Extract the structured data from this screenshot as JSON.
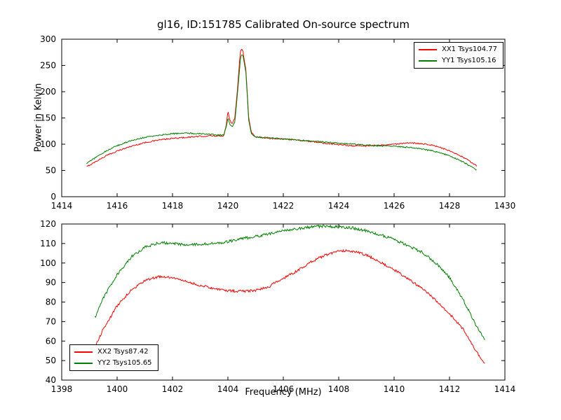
{
  "figure_title": "gl16, ID:151785 Calibrated On-source spectrum",
  "chart_data": [
    {
      "type": "line",
      "title": "gl16, ID:151785 Calibrated On-source spectrum",
      "xlabel": "",
      "ylabel": "Power in Kelvin",
      "xlim": [
        1414,
        1430
      ],
      "ylim": [
        0,
        300
      ],
      "xticks": [
        1414,
        1416,
        1418,
        1420,
        1422,
        1424,
        1426,
        1428,
        1430
      ],
      "yticks": [
        0,
        50,
        100,
        150,
        200,
        250,
        300
      ],
      "grid": false,
      "legend_position": "upper-right",
      "series": [
        {
          "name": "XX1 Tsys104.77",
          "color": "#ff0000",
          "noise": 1.2,
          "points": [
            [
              1414.9,
              57
            ],
            [
              1415.2,
              66
            ],
            [
              1415.6,
              78
            ],
            [
              1416.0,
              87
            ],
            [
              1416.5,
              96
            ],
            [
              1417.0,
              103
            ],
            [
              1417.5,
              108
            ],
            [
              1418.0,
              111
            ],
            [
              1418.5,
              113
            ],
            [
              1419.0,
              115
            ],
            [
              1419.5,
              116
            ],
            [
              1419.85,
              116
            ],
            [
              1419.95,
              140
            ],
            [
              1420.0,
              165
            ],
            [
              1420.05,
              148
            ],
            [
              1420.15,
              138
            ],
            [
              1420.25,
              150
            ],
            [
              1420.35,
              210
            ],
            [
              1420.45,
              278
            ],
            [
              1420.5,
              282
            ],
            [
              1420.55,
              275
            ],
            [
              1420.65,
              240
            ],
            [
              1420.75,
              150
            ],
            [
              1420.85,
              122
            ],
            [
              1421.0,
              114
            ],
            [
              1421.5,
              111
            ],
            [
              1422.0,
              110
            ],
            [
              1422.5,
              108
            ],
            [
              1423.0,
              105
            ],
            [
              1423.5,
              102
            ],
            [
              1424.0,
              99
            ],
            [
              1424.5,
              97
            ],
            [
              1425.0,
              97
            ],
            [
              1425.5,
              98
            ],
            [
              1426.0,
              100
            ],
            [
              1426.5,
              102
            ],
            [
              1426.8,
              102
            ],
            [
              1427.2,
              100
            ],
            [
              1427.6,
              95
            ],
            [
              1428.0,
              87
            ],
            [
              1428.5,
              75
            ],
            [
              1429.0,
              58
            ]
          ]
        },
        {
          "name": "YY1 Tsys105.16",
          "color": "#008000",
          "noise": 1.2,
          "points": [
            [
              1414.9,
              63
            ],
            [
              1415.2,
              74
            ],
            [
              1415.6,
              87
            ],
            [
              1416.0,
              97
            ],
            [
              1416.5,
              107
            ],
            [
              1417.0,
              113
            ],
            [
              1417.5,
              117
            ],
            [
              1418.0,
              120
            ],
            [
              1418.5,
              121
            ],
            [
              1419.0,
              120
            ],
            [
              1419.5,
              118
            ],
            [
              1419.85,
              117
            ],
            [
              1419.95,
              135
            ],
            [
              1420.0,
              152
            ],
            [
              1420.05,
              140
            ],
            [
              1420.15,
              133
            ],
            [
              1420.25,
              143
            ],
            [
              1420.35,
              200
            ],
            [
              1420.45,
              262
            ],
            [
              1420.5,
              272
            ],
            [
              1420.55,
              268
            ],
            [
              1420.65,
              235
            ],
            [
              1420.75,
              145
            ],
            [
              1420.85,
              119
            ],
            [
              1421.0,
              114
            ],
            [
              1421.5,
              112
            ],
            [
              1422.0,
              110
            ],
            [
              1422.5,
              108
            ],
            [
              1423.0,
              106
            ],
            [
              1423.5,
              104
            ],
            [
              1424.0,
              102
            ],
            [
              1424.5,
              100
            ],
            [
              1425.0,
              98
            ],
            [
              1425.5,
              97
            ],
            [
              1426.0,
              96
            ],
            [
              1426.5,
              94
            ],
            [
              1427.0,
              91
            ],
            [
              1427.5,
              86
            ],
            [
              1428.0,
              78
            ],
            [
              1428.5,
              66
            ],
            [
              1429.0,
              50
            ]
          ]
        }
      ]
    },
    {
      "type": "line",
      "title": "",
      "xlabel": "Frequency (MHz)",
      "ylabel": "",
      "xlim": [
        1398,
        1414
      ],
      "ylim": [
        40,
        120
      ],
      "xticks": [
        1398,
        1400,
        1402,
        1404,
        1406,
        1408,
        1410,
        1412,
        1414
      ],
      "yticks": [
        40,
        50,
        60,
        70,
        80,
        90,
        100,
        110,
        120
      ],
      "grid": false,
      "legend_position": "lower-left",
      "series": [
        {
          "name": "XX2 Tsys87.42",
          "color": "#ff0000",
          "noise": 0.6,
          "points": [
            [
              1399.2,
              57
            ],
            [
              1399.5,
              66
            ],
            [
              1400.0,
              78
            ],
            [
              1400.5,
              86
            ],
            [
              1401.0,
              91
            ],
            [
              1401.5,
              93
            ],
            [
              1402.0,
              92.5
            ],
            [
              1402.5,
              90.5
            ],
            [
              1403.0,
              88.5
            ],
            [
              1403.5,
              87
            ],
            [
              1404.0,
              85.8
            ],
            [
              1404.5,
              85.5
            ],
            [
              1405.0,
              86
            ],
            [
              1405.5,
              88
            ],
            [
              1405.8,
              91
            ],
            [
              1406.0,
              92
            ],
            [
              1406.5,
              96
            ],
            [
              1407.0,
              100.5
            ],
            [
              1407.5,
              104
            ],
            [
              1408.0,
              106
            ],
            [
              1408.3,
              106.5
            ],
            [
              1408.7,
              105.5
            ],
            [
              1409.0,
              104
            ],
            [
              1409.5,
              100.5
            ],
            [
              1410.0,
              96.5
            ],
            [
              1410.5,
              92
            ],
            [
              1411.0,
              87
            ],
            [
              1411.5,
              81
            ],
            [
              1412.0,
              74
            ],
            [
              1412.5,
              66
            ],
            [
              1413.0,
              54
            ],
            [
              1413.3,
              48
            ]
          ]
        },
        {
          "name": "YY2 Tsys105.65",
          "color": "#008000",
          "noise": 0.7,
          "points": [
            [
              1399.2,
              72
            ],
            [
              1399.5,
              82
            ],
            [
              1400.0,
              94
            ],
            [
              1400.5,
              103
            ],
            [
              1401.0,
              108
            ],
            [
              1401.5,
              110.5
            ],
            [
              1402.0,
              110
            ],
            [
              1402.5,
              109.5
            ],
            [
              1403.0,
              109.5
            ],
            [
              1403.5,
              110
            ],
            [
              1404.0,
              111
            ],
            [
              1404.5,
              112.5
            ],
            [
              1405.0,
              113.5
            ],
            [
              1405.5,
              115
            ],
            [
              1406.0,
              116.5
            ],
            [
              1406.5,
              117.5
            ],
            [
              1407.0,
              118.5
            ],
            [
              1407.5,
              119
            ],
            [
              1408.0,
              118.5
            ],
            [
              1408.5,
              118
            ],
            [
              1409.0,
              116.5
            ],
            [
              1409.5,
              114.5
            ],
            [
              1410.0,
              112
            ],
            [
              1410.5,
              109
            ],
            [
              1411.0,
              105.5
            ],
            [
              1411.5,
              100
            ],
            [
              1412.0,
              92.5
            ],
            [
              1412.5,
              81
            ],
            [
              1413.0,
              67
            ],
            [
              1413.3,
              60
            ]
          ]
        }
      ]
    }
  ]
}
